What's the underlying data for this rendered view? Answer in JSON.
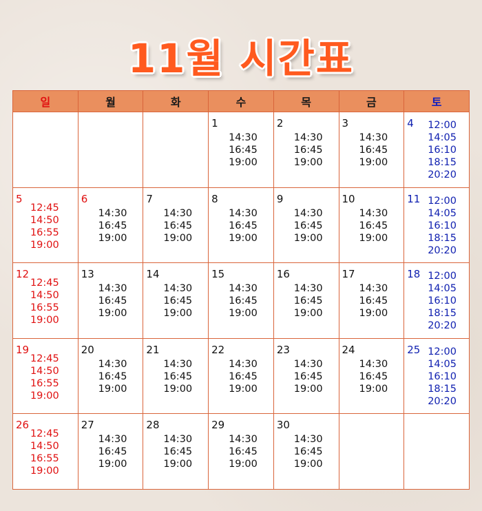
{
  "title": "11월 시간표",
  "weekdays": [
    "일",
    "월",
    "화",
    "수",
    "목",
    "금",
    "토"
  ],
  "weeks": [
    [
      {
        "day": "",
        "times": []
      },
      {
        "day": "",
        "times": []
      },
      {
        "day": "",
        "times": []
      },
      {
        "day": "1",
        "times": [
          "14:30",
          "16:45",
          "19:00"
        ]
      },
      {
        "day": "2",
        "times": [
          "14:30",
          "16:45",
          "19:00"
        ]
      },
      {
        "day": "3",
        "times": [
          "14:30",
          "16:45",
          "19:00"
        ]
      },
      {
        "day": "4",
        "times": [
          "12:00",
          "14:05",
          "16:10",
          "18:15",
          "20:20"
        ]
      }
    ],
    [
      {
        "day": "5",
        "times": [
          "12:45",
          "14:50",
          "16:55",
          "19:00"
        ]
      },
      {
        "day": "6",
        "times": [
          "14:30",
          "16:45",
          "19:00"
        ],
        "holiday": true
      },
      {
        "day": "7",
        "times": [
          "14:30",
          "16:45",
          "19:00"
        ]
      },
      {
        "day": "8",
        "times": [
          "14:30",
          "16:45",
          "19:00"
        ]
      },
      {
        "day": "9",
        "times": [
          "14:30",
          "16:45",
          "19:00"
        ]
      },
      {
        "day": "10",
        "times": [
          "14:30",
          "16:45",
          "19:00"
        ]
      },
      {
        "day": "11",
        "times": [
          "12:00",
          "14:05",
          "16:10",
          "18:15",
          "20:20"
        ]
      }
    ],
    [
      {
        "day": "12",
        "times": [
          "12:45",
          "14:50",
          "16:55",
          "19:00"
        ]
      },
      {
        "day": "13",
        "times": [
          "14:30",
          "16:45",
          "19:00"
        ]
      },
      {
        "day": "14",
        "times": [
          "14:30",
          "16:45",
          "19:00"
        ]
      },
      {
        "day": "15",
        "times": [
          "14:30",
          "16:45",
          "19:00"
        ]
      },
      {
        "day": "16",
        "times": [
          "14:30",
          "16:45",
          "19:00"
        ]
      },
      {
        "day": "17",
        "times": [
          "14:30",
          "16:45",
          "19:00"
        ]
      },
      {
        "day": "18",
        "times": [
          "12:00",
          "14:05",
          "16:10",
          "18:15",
          "20:20"
        ]
      }
    ],
    [
      {
        "day": "19",
        "times": [
          "12:45",
          "14:50",
          "16:55",
          "19:00"
        ]
      },
      {
        "day": "20",
        "times": [
          "14:30",
          "16:45",
          "19:00"
        ]
      },
      {
        "day": "21",
        "times": [
          "14:30",
          "16:45",
          "19:00"
        ]
      },
      {
        "day": "22",
        "times": [
          "14:30",
          "16:45",
          "19:00"
        ]
      },
      {
        "day": "23",
        "times": [
          "14:30",
          "16:45",
          "19:00"
        ]
      },
      {
        "day": "24",
        "times": [
          "14:30",
          "16:45",
          "19:00"
        ]
      },
      {
        "day": "25",
        "times": [
          "12:00",
          "14:05",
          "16:10",
          "18:15",
          "20:20"
        ]
      }
    ],
    [
      {
        "day": "26",
        "times": [
          "12:45",
          "14:50",
          "16:55",
          "19:00"
        ]
      },
      {
        "day": "27",
        "times": [
          "14:30",
          "16:45",
          "19:00"
        ]
      },
      {
        "day": "28",
        "times": [
          "14:30",
          "16:45",
          "19:00"
        ]
      },
      {
        "day": "29",
        "times": [
          "14:30",
          "16:45",
          "19:00"
        ]
      },
      {
        "day": "30",
        "times": [
          "14:30",
          "16:45",
          "19:00"
        ]
      },
      {
        "day": "",
        "times": []
      },
      {
        "day": "",
        "times": []
      }
    ]
  ],
  "colors": {
    "title": "#ff5a1f",
    "header_bg": "#ea8f5e",
    "border": "#d9643a",
    "sunday": "#e01010",
    "saturday": "#1020b0"
  }
}
